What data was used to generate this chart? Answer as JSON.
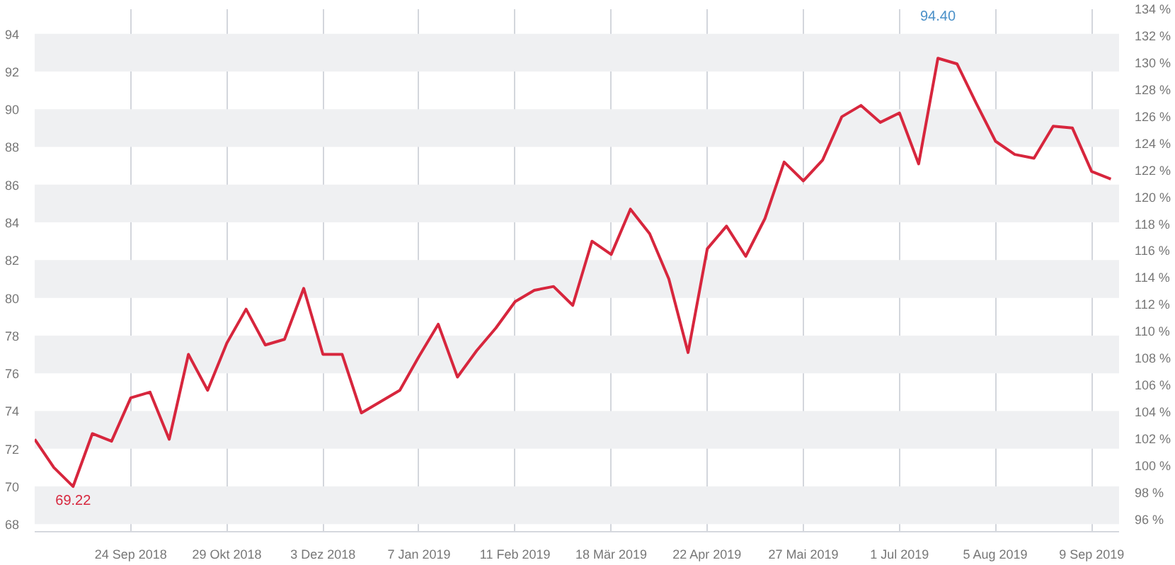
{
  "chart_data": {
    "type": "line",
    "x": [
      "2018-08-20",
      "2018-08-27",
      "2018-09-03",
      "2018-09-10",
      "2018-09-17",
      "2018-09-24",
      "2018-10-01",
      "2018-10-08",
      "2018-10-15",
      "2018-10-22",
      "2018-10-29",
      "2018-11-05",
      "2018-11-12",
      "2018-11-19",
      "2018-11-26",
      "2018-12-03",
      "2018-12-10",
      "2018-12-17",
      "2018-12-24",
      "2018-12-31",
      "2019-01-07",
      "2019-01-14",
      "2019-01-21",
      "2019-01-28",
      "2019-02-04",
      "2019-02-11",
      "2019-02-18",
      "2019-02-25",
      "2019-03-04",
      "2019-03-11",
      "2019-03-18",
      "2019-03-25",
      "2019-04-01",
      "2019-04-08",
      "2019-04-15",
      "2019-04-22",
      "2019-04-29",
      "2019-05-06",
      "2019-05-13",
      "2019-05-20",
      "2019-05-27",
      "2019-06-03",
      "2019-06-10",
      "2019-06-17",
      "2019-06-24",
      "2019-07-01",
      "2019-07-08",
      "2019-07-15",
      "2019-07-22",
      "2019-07-29",
      "2019-08-05",
      "2019-08-12",
      "2019-08-19",
      "2019-08-26",
      "2019-09-02",
      "2019-09-09",
      "2019-09-16"
    ],
    "series": [
      {
        "color": "#d7263d",
        "values": [
          72.5,
          71.0,
          70.0,
          72.8,
          72.4,
          74.7,
          75.0,
          72.5,
          77.0,
          75.1,
          77.6,
          79.4,
          77.5,
          77.8,
          80.5,
          77.0,
          77.0,
          73.9,
          74.5,
          75.1,
          76.9,
          78.6,
          75.8,
          77.2,
          78.4,
          79.8,
          80.4,
          80.6,
          79.6,
          83.0,
          82.3,
          84.7,
          83.4,
          81.0,
          77.1,
          82.6,
          83.8,
          82.2,
          84.2,
          87.2,
          86.2,
          87.3,
          89.6,
          90.2,
          89.3,
          89.8,
          87.1,
          92.7,
          92.4,
          90.3,
          88.3,
          87.6,
          87.4,
          89.1,
          89.0,
          86.7,
          86.3
        ]
      }
    ],
    "xlim": [
      "2018-08-20",
      "2019-09-19"
    ],
    "xticks": [
      {
        "value": "2018-09-24",
        "label": "24 Sep 2018"
      },
      {
        "value": "2018-10-29",
        "label": "29 Okt 2018"
      },
      {
        "value": "2018-12-03",
        "label": "3 Dez 2018"
      },
      {
        "value": "2019-01-07",
        "label": "7 Jan 2019"
      },
      {
        "value": "2019-02-11",
        "label": "11 Feb 2019"
      },
      {
        "value": "2019-03-18",
        "label": "18 Mär 2019"
      },
      {
        "value": "2019-04-22",
        "label": "22 Apr 2019"
      },
      {
        "value": "2019-05-27",
        "label": "27 Mai 2019"
      },
      {
        "value": "2019-07-01",
        "label": "1 Jul 2019"
      },
      {
        "value": "2019-08-05",
        "label": "5 Aug 2019"
      },
      {
        "value": "2019-09-09",
        "label": "9 Sep 2019"
      }
    ],
    "ylim": [
      67.6,
      95.3
    ],
    "yticks": [
      68,
      70,
      72,
      74,
      76,
      78,
      80,
      82,
      84,
      86,
      88,
      90,
      92,
      94
    ],
    "y2lim": [
      95.1,
      134.0
    ],
    "y2ticks": [
      {
        "value": 96,
        "label": "96 %"
      },
      {
        "value": 98,
        "label": "98 %"
      },
      {
        "value": 100,
        "label": "100 %"
      },
      {
        "value": 102,
        "label": "102 %"
      },
      {
        "value": 104,
        "label": "104 %"
      },
      {
        "value": 106,
        "label": "106 %"
      },
      {
        "value": 108,
        "label": "108 %"
      },
      {
        "value": 110,
        "label": "110 %"
      },
      {
        "value": 112,
        "label": "112 %"
      },
      {
        "value": 114,
        "label": "114 %"
      },
      {
        "value": 116,
        "label": "116 %"
      },
      {
        "value": 118,
        "label": "118 %"
      },
      {
        "value": 120,
        "label": "120 %"
      },
      {
        "value": 122,
        "label": "122 %"
      },
      {
        "value": 124,
        "label": "124 %"
      },
      {
        "value": 126,
        "label": "126 %"
      },
      {
        "value": 128,
        "label": "128 %"
      },
      {
        "value": 130,
        "label": "130 %"
      },
      {
        "value": 132,
        "label": "132 %"
      },
      {
        "value": 134,
        "label": "134 %"
      }
    ],
    "bands": [
      {
        "axis": "y",
        "from": 68,
        "to": 70,
        "color": "#eff0f2"
      },
      {
        "axis": "y",
        "from": 72,
        "to": 74,
        "color": "#eff0f2"
      },
      {
        "axis": "y",
        "from": 76,
        "to": 78,
        "color": "#eff0f2"
      },
      {
        "axis": "y",
        "from": 80,
        "to": 82,
        "color": "#eff0f2"
      },
      {
        "axis": "y",
        "from": 84,
        "to": 86,
        "color": "#eff0f2"
      },
      {
        "axis": "y",
        "from": 88,
        "to": 90,
        "color": "#eff0f2"
      },
      {
        "axis": "y",
        "from": 92,
        "to": 94,
        "color": "#eff0f2"
      }
    ],
    "annotations": [
      "69.22",
      "94.40"
    ],
    "grid": "x",
    "marker": "none",
    "line_style": "solid"
  }
}
